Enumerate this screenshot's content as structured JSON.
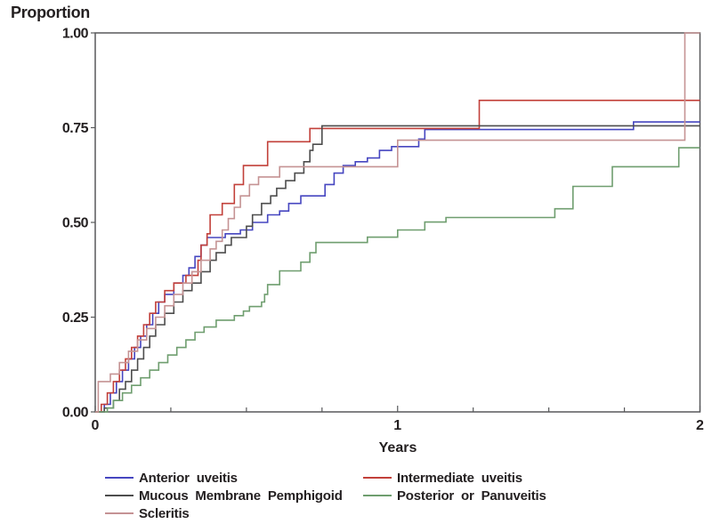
{
  "figure": {
    "y_axis_title": "Proportion",
    "x_axis_title": "Years"
  },
  "chart_data": {
    "type": "line",
    "subtype": "kaplan-meier-step-cumulative-incidence",
    "title": "",
    "xlabel": "Years",
    "ylabel": "Proportion",
    "xlim": [
      0,
      2
    ],
    "ylim": [
      0,
      1
    ],
    "x_major_ticks": [
      0,
      1,
      2
    ],
    "x_minor_tick_interval": 0.25,
    "y_major_ticks": [
      0,
      0.25,
      0.5,
      0.75,
      1.0
    ],
    "grid": false,
    "legend_position": "bottom",
    "frame_color": "#58595b",
    "series": [
      {
        "name": "Anterior uveitis",
        "color": "#4646c0",
        "points": [
          [
            0,
            0
          ],
          [
            0.03,
            0.02
          ],
          [
            0.05,
            0.05
          ],
          [
            0.07,
            0.08
          ],
          [
            0.09,
            0.11
          ],
          [
            0.11,
            0.14
          ],
          [
            0.13,
            0.17
          ],
          [
            0.15,
            0.2
          ],
          [
            0.17,
            0.23
          ],
          [
            0.19,
            0.26
          ],
          [
            0.21,
            0.29
          ],
          [
            0.23,
            0.31
          ],
          [
            0.26,
            0.34
          ],
          [
            0.29,
            0.36
          ],
          [
            0.31,
            0.38
          ],
          [
            0.33,
            0.41
          ],
          [
            0.35,
            0.44
          ],
          [
            0.37,
            0.46
          ],
          [
            0.43,
            0.47
          ],
          [
            0.48,
            0.48
          ],
          [
            0.52,
            0.5
          ],
          [
            0.57,
            0.52
          ],
          [
            0.61,
            0.53
          ],
          [
            0.64,
            0.55
          ],
          [
            0.68,
            0.57
          ],
          [
            0.76,
            0.6
          ],
          [
            0.79,
            0.63
          ],
          [
            0.82,
            0.65
          ],
          [
            0.86,
            0.66
          ],
          [
            0.9,
            0.67
          ],
          [
            0.94,
            0.69
          ],
          [
            0.98,
            0.7
          ],
          [
            1.07,
            0.72
          ],
          [
            1.09,
            0.745
          ],
          [
            1.78,
            0.765
          ],
          [
            2.0,
            0.765
          ]
        ]
      },
      {
        "name": "Intermediate uveitis",
        "color": "#c2403a",
        "points": [
          [
            0,
            0
          ],
          [
            0.02,
            0.02
          ],
          [
            0.04,
            0.05
          ],
          [
            0.06,
            0.08
          ],
          [
            0.08,
            0.11
          ],
          [
            0.1,
            0.14
          ],
          [
            0.12,
            0.17
          ],
          [
            0.14,
            0.2
          ],
          [
            0.16,
            0.23
          ],
          [
            0.18,
            0.26
          ],
          [
            0.2,
            0.29
          ],
          [
            0.23,
            0.32
          ],
          [
            0.26,
            0.34
          ],
          [
            0.3,
            0.36
          ],
          [
            0.34,
            0.4
          ],
          [
            0.35,
            0.44
          ],
          [
            0.37,
            0.47
          ],
          [
            0.38,
            0.52
          ],
          [
            0.42,
            0.55
          ],
          [
            0.46,
            0.6
          ],
          [
            0.49,
            0.65
          ],
          [
            0.57,
            0.713
          ],
          [
            0.71,
            0.748
          ],
          [
            1.27,
            0.822
          ],
          [
            2.0,
            0.822
          ]
        ]
      },
      {
        "name": "Mucous Membrane Pemphigoid",
        "color": "#4d4d4d",
        "points": [
          [
            0,
            0
          ],
          [
            0.03,
            0.01
          ],
          [
            0.06,
            0.03
          ],
          [
            0.08,
            0.06
          ],
          [
            0.1,
            0.08
          ],
          [
            0.12,
            0.11
          ],
          [
            0.14,
            0.14
          ],
          [
            0.16,
            0.17
          ],
          [
            0.18,
            0.2
          ],
          [
            0.2,
            0.23
          ],
          [
            0.23,
            0.26
          ],
          [
            0.26,
            0.29
          ],
          [
            0.29,
            0.32
          ],
          [
            0.32,
            0.34
          ],
          [
            0.35,
            0.37
          ],
          [
            0.38,
            0.4
          ],
          [
            0.4,
            0.42
          ],
          [
            0.43,
            0.44
          ],
          [
            0.45,
            0.46
          ],
          [
            0.5,
            0.49
          ],
          [
            0.52,
            0.52
          ],
          [
            0.55,
            0.55
          ],
          [
            0.58,
            0.57
          ],
          [
            0.6,
            0.59
          ],
          [
            0.63,
            0.61
          ],
          [
            0.66,
            0.63
          ],
          [
            0.69,
            0.66
          ],
          [
            0.71,
            0.69
          ],
          [
            0.72,
            0.706
          ],
          [
            0.75,
            0.755
          ],
          [
            2.0,
            0.755
          ]
        ]
      },
      {
        "name": "Posterior or Panuveitis",
        "color": "#6f9e6f",
        "points": [
          [
            0,
            0
          ],
          [
            0.04,
            0.01
          ],
          [
            0.06,
            0.03
          ],
          [
            0.09,
            0.05
          ],
          [
            0.12,
            0.07
          ],
          [
            0.15,
            0.09
          ],
          [
            0.18,
            0.11
          ],
          [
            0.21,
            0.13
          ],
          [
            0.24,
            0.15
          ],
          [
            0.27,
            0.17
          ],
          [
            0.3,
            0.19
          ],
          [
            0.33,
            0.21
          ],
          [
            0.36,
            0.224
          ],
          [
            0.4,
            0.242
          ],
          [
            0.46,
            0.254
          ],
          [
            0.49,
            0.266
          ],
          [
            0.51,
            0.278
          ],
          [
            0.55,
            0.29
          ],
          [
            0.56,
            0.31
          ],
          [
            0.57,
            0.336
          ],
          [
            0.61,
            0.372
          ],
          [
            0.68,
            0.395
          ],
          [
            0.71,
            0.42
          ],
          [
            0.73,
            0.447
          ],
          [
            0.9,
            0.461
          ],
          [
            1.0,
            0.48
          ],
          [
            1.09,
            0.501
          ],
          [
            1.16,
            0.513
          ],
          [
            1.52,
            0.536
          ],
          [
            1.58,
            0.595
          ],
          [
            1.71,
            0.647
          ],
          [
            1.93,
            0.697
          ],
          [
            2.0,
            0.697
          ]
        ]
      },
      {
        "name": "Scleritis",
        "color": "#c59394",
        "points": [
          [
            0,
            0
          ],
          [
            0.01,
            0.08
          ],
          [
            0.05,
            0.1
          ],
          [
            0.08,
            0.13
          ],
          [
            0.11,
            0.16
          ],
          [
            0.14,
            0.19
          ],
          [
            0.17,
            0.22
          ],
          [
            0.2,
            0.25
          ],
          [
            0.23,
            0.28
          ],
          [
            0.26,
            0.31
          ],
          [
            0.29,
            0.34
          ],
          [
            0.32,
            0.37
          ],
          [
            0.35,
            0.4
          ],
          [
            0.38,
            0.43
          ],
          [
            0.4,
            0.45
          ],
          [
            0.42,
            0.48
          ],
          [
            0.44,
            0.51
          ],
          [
            0.46,
            0.54
          ],
          [
            0.48,
            0.57
          ],
          [
            0.51,
            0.6
          ],
          [
            0.54,
            0.62
          ],
          [
            0.61,
            0.647
          ],
          [
            1.0,
            0.717
          ],
          [
            1.95,
            1.0
          ],
          [
            2.0,
            1.0
          ]
        ]
      }
    ]
  },
  "legend": {
    "columns": [
      {
        "items": [
          {
            "label": "Anterior uveitis",
            "color": "#4646c0"
          },
          {
            "label": "Mucous Membrane Pemphigoid",
            "color": "#4d4d4d"
          },
          {
            "label": "Scleritis",
            "color": "#c59394"
          }
        ]
      },
      {
        "items": [
          {
            "label": "Intermediate uveitis",
            "color": "#c2403a"
          },
          {
            "label": "Posterior or Panuveitis",
            "color": "#6f9e6f"
          }
        ]
      }
    ]
  }
}
